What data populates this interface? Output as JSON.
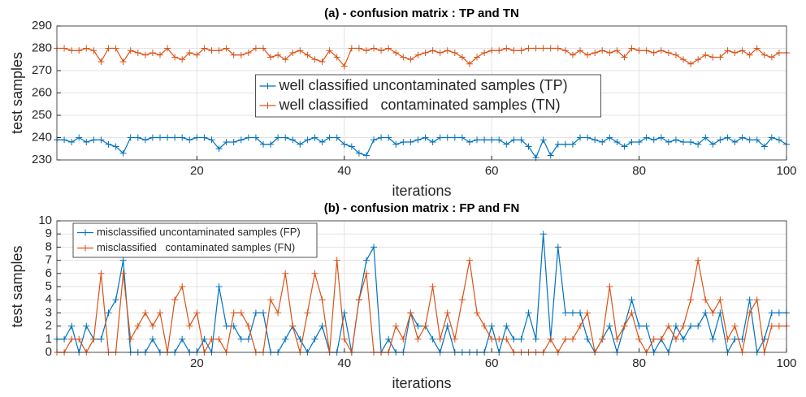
{
  "chart_data": [
    {
      "type": "line",
      "title": "(a) - confusion matrix : TP and TN",
      "xlabel": "iterations",
      "ylabel": "test samples",
      "xlim": [
        1,
        100
      ],
      "xticks": [
        20,
        40,
        60,
        80,
        100
      ],
      "ylim": [
        230,
        290
      ],
      "yticks": [
        230,
        240,
        250,
        260,
        270,
        280,
        290
      ],
      "grid": true,
      "legend": "center",
      "x": [
        1,
        2,
        3,
        4,
        5,
        6,
        7,
        8,
        9,
        10,
        11,
        12,
        13,
        14,
        15,
        16,
        17,
        18,
        19,
        20,
        21,
        22,
        23,
        24,
        25,
        26,
        27,
        28,
        29,
        30,
        31,
        32,
        33,
        34,
        35,
        36,
        37,
        38,
        39,
        40,
        41,
        42,
        43,
        44,
        45,
        46,
        47,
        48,
        49,
        50,
        51,
        52,
        53,
        54,
        55,
        56,
        57,
        58,
        59,
        60,
        61,
        62,
        63,
        64,
        65,
        66,
        67,
        68,
        69,
        70,
        71,
        72,
        73,
        74,
        75,
        76,
        77,
        78,
        79,
        80,
        81,
        82,
        83,
        84,
        85,
        86,
        87,
        88,
        89,
        90,
        91,
        92,
        93,
        94,
        95,
        96,
        97,
        98,
        99,
        100
      ],
      "series": [
        {
          "name": "well classified uncontaminated samples (TP)",
          "color": "#0072BD",
          "values": [
            239,
            239,
            238,
            240,
            238,
            239,
            239,
            237,
            236,
            233,
            240,
            240,
            239,
            240,
            240,
            240,
            240,
            240,
            239,
            240,
            240,
            239,
            235,
            238,
            238,
            239,
            240,
            240,
            237,
            237,
            240,
            240,
            239,
            237,
            239,
            240,
            238,
            240,
            240,
            237,
            236,
            233,
            232,
            239,
            240,
            240,
            237,
            238,
            238,
            239,
            240,
            238,
            240,
            240,
            240,
            240,
            238,
            239,
            239,
            239,
            239,
            237,
            239,
            239,
            236,
            231,
            239,
            232,
            237,
            237,
            237,
            240,
            240,
            239,
            238,
            240,
            238,
            236,
            238,
            238,
            240,
            239,
            240,
            238,
            239,
            238,
            238,
            237,
            240,
            237,
            239,
            240,
            238,
            240,
            239,
            239,
            236,
            240,
            239,
            237
          ]
        },
        {
          "name": "well classified   contaminated samples (TN)",
          "color": "#D95319",
          "values": [
            280,
            280,
            279,
            279,
            280,
            279,
            274,
            280,
            280,
            274,
            279,
            278,
            277,
            278,
            277,
            280,
            276,
            275,
            278,
            277,
            280,
            279,
            279,
            280,
            277,
            277,
            278,
            280,
            280,
            276,
            277,
            275,
            278,
            279,
            277,
            275,
            274,
            279,
            276,
            272,
            280,
            280,
            279,
            280,
            279,
            280,
            278,
            276,
            275,
            277,
            278,
            279,
            278,
            279,
            278,
            276,
            273,
            276,
            278,
            279,
            279,
            280,
            279,
            279,
            280,
            280,
            280,
            280,
            280,
            279,
            277,
            279,
            277,
            278,
            279,
            278,
            279,
            276,
            280,
            279,
            279,
            278,
            279,
            278,
            277,
            275,
            273,
            275,
            277,
            276,
            276,
            279,
            278,
            279,
            277,
            280,
            277,
            276,
            278,
            278
          ]
        }
      ]
    },
    {
      "type": "line",
      "title": "(b) - confusion matrix : FP and FN",
      "xlabel": "iterations",
      "ylabel": "test samples",
      "xlim": [
        1,
        100
      ],
      "xticks": [
        20,
        40,
        60,
        80,
        100
      ],
      "ylim": [
        0,
        10
      ],
      "yticks": [
        0,
        1,
        2,
        3,
        4,
        5,
        6,
        7,
        8,
        9,
        10
      ],
      "grid": true,
      "legend": "northwest",
      "x": [
        1,
        2,
        3,
        4,
        5,
        6,
        7,
        8,
        9,
        10,
        11,
        12,
        13,
        14,
        15,
        16,
        17,
        18,
        19,
        20,
        21,
        22,
        23,
        24,
        25,
        26,
        27,
        28,
        29,
        30,
        31,
        32,
        33,
        34,
        35,
        36,
        37,
        38,
        39,
        40,
        41,
        42,
        43,
        44,
        45,
        46,
        47,
        48,
        49,
        50,
        51,
        52,
        53,
        54,
        55,
        56,
        57,
        58,
        59,
        60,
        61,
        62,
        63,
        64,
        65,
        66,
        67,
        68,
        69,
        70,
        71,
        72,
        73,
        74,
        75,
        76,
        77,
        78,
        79,
        80,
        81,
        82,
        83,
        84,
        85,
        86,
        87,
        88,
        89,
        90,
        91,
        92,
        93,
        94,
        95,
        96,
        97,
        98,
        99,
        100
      ],
      "series": [
        {
          "name": "misclassified uncontaminated samples (FP)",
          "color": "#0072BD",
          "values": [
            1,
            1,
            2,
            0,
            2,
            1,
            1,
            3,
            4,
            7,
            0,
            0,
            0,
            1,
            0,
            0,
            0,
            1,
            0,
            0,
            1,
            0,
            5,
            2,
            2,
            1,
            1,
            3,
            3,
            0,
            0,
            1,
            2,
            1,
            0,
            1,
            2,
            0,
            0,
            3,
            0,
            4,
            7,
            8,
            0,
            1,
            0,
            0,
            3,
            2,
            2,
            1,
            0,
            2,
            0,
            0,
            0,
            0,
            0,
            2,
            0,
            2,
            1,
            1,
            3,
            1,
            9,
            1,
            8,
            3,
            3,
            3,
            1,
            0,
            1,
            2,
            0,
            2,
            4,
            2,
            2,
            0,
            1,
            0,
            2,
            1,
            2,
            2,
            3,
            1,
            3,
            0,
            1,
            1,
            4,
            0,
            1,
            3,
            3,
            3
          ]
        },
        {
          "name": "misclassified   contaminated samples (FN)",
          "color": "#D95319",
          "values": [
            0,
            0,
            1,
            1,
            0,
            1,
            6,
            0,
            0,
            6,
            1,
            2,
            3,
            2,
            3,
            0,
            4,
            5,
            2,
            3,
            0,
            1,
            1,
            0,
            3,
            3,
            2,
            0,
            0,
            4,
            3,
            6,
            2,
            0,
            3,
            6,
            4,
            0,
            7,
            1,
            0,
            4,
            6,
            0,
            0,
            0,
            2,
            1,
            3,
            1,
            2,
            5,
            1,
            3,
            1,
            4,
            7,
            3,
            2,
            1,
            1,
            1,
            0,
            0,
            0,
            0,
            0,
            1,
            0,
            1,
            1,
            2,
            3,
            0,
            1,
            5,
            1,
            2,
            3,
            1,
            0,
            1,
            1,
            2,
            1,
            2,
            4,
            7,
            4,
            3,
            4,
            1,
            2,
            0,
            3,
            4,
            0,
            2,
            2,
            2
          ]
        }
      ]
    }
  ]
}
